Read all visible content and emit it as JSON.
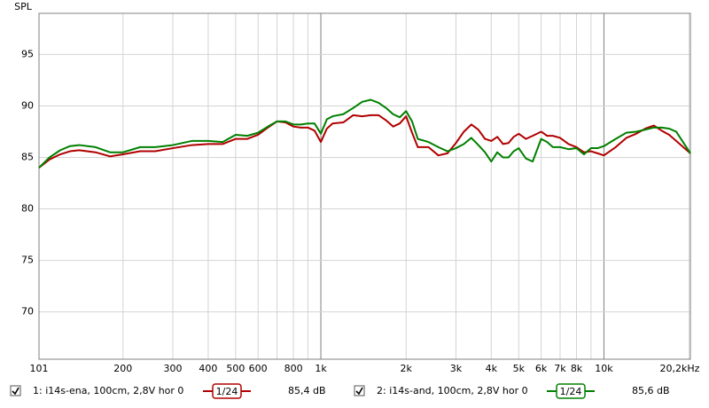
{
  "chart_data": {
    "type": "line",
    "y_label": "SPL",
    "xscale": "log",
    "xlim": [
      101,
      20200
    ],
    "ylim": [
      65.4,
      99
    ],
    "xticks": [
      101,
      200,
      300,
      400,
      500,
      600,
      800,
      {
        "value": 1000,
        "label": "1k"
      },
      {
        "value": 2000,
        "label": "2k"
      },
      {
        "value": 3000,
        "label": "3k"
      },
      {
        "value": 4000,
        "label": "4k"
      },
      {
        "value": 5000,
        "label": "5k"
      },
      {
        "value": 6000,
        "label": "6k"
      },
      {
        "value": 7000,
        "label": "7k"
      },
      {
        "value": 8000,
        "label": "8k"
      },
      {
        "value": 10000,
        "label": "10k"
      },
      {
        "value": 20200,
        "label": "20,2kHz"
      }
    ],
    "xgrid": [
      200,
      300,
      400,
      500,
      600,
      700,
      800,
      900,
      1000,
      2000,
      3000,
      4000,
      5000,
      6000,
      7000,
      8000,
      9000,
      10000,
      20000
    ],
    "yticks": [
      70,
      75,
      80,
      85,
      90,
      95
    ],
    "grid": true,
    "x": [
      101,
      110,
      120,
      130,
      140,
      160,
      180,
      200,
      230,
      260,
      300,
      350,
      400,
      450,
      500,
      550,
      600,
      650,
      700,
      750,
      800,
      850,
      900,
      950,
      1000,
      1050,
      1100,
      1200,
      1300,
      1400,
      1500,
      1600,
      1700,
      1800,
      1900,
      2000,
      2100,
      2200,
      2400,
      2600,
      2800,
      3000,
      3200,
      3400,
      3600,
      3800,
      4000,
      4200,
      4400,
      4600,
      4800,
      5000,
      5300,
      5600,
      6000,
      6300,
      6600,
      7000,
      7500,
      8000,
      8500,
      9000,
      9500,
      10000,
      11000,
      12000,
      13000,
      14000,
      15000,
      16000,
      17000,
      18000,
      20200
    ],
    "series": [
      {
        "name": "1: i14s-ena, 100cm, 2,8V hor 0",
        "color": "#b00000",
        "smoothing": "1/24",
        "level_label": "85,4 dB",
        "values": [
          84.0,
          84.8,
          85.3,
          85.6,
          85.7,
          85.5,
          85.1,
          85.3,
          85.6,
          85.6,
          85.9,
          86.2,
          86.3,
          86.3,
          86.8,
          86.8,
          87.2,
          87.9,
          88.5,
          88.4,
          88.0,
          87.9,
          87.9,
          87.6,
          86.5,
          87.8,
          88.3,
          88.4,
          89.1,
          89.0,
          89.1,
          89.1,
          88.6,
          88.0,
          88.3,
          89.0,
          87.4,
          86.0,
          86.0,
          85.2,
          85.4,
          86.4,
          87.5,
          88.2,
          87.7,
          86.8,
          86.6,
          87.0,
          86.3,
          86.4,
          87.0,
          87.3,
          86.8,
          87.1,
          87.5,
          87.1,
          87.1,
          86.9,
          86.3,
          86.0,
          85.5,
          85.6,
          85.4,
          85.2,
          86.0,
          86.9,
          87.3,
          87.8,
          88.1,
          87.6,
          87.2,
          86.6,
          85.4
        ]
      },
      {
        "name": "2: i14s-and, 100cm, 2,8V hor 0",
        "color": "#008000",
        "smoothing": "1/24",
        "level_label": "85,6 dB",
        "values": [
          84.0,
          85.0,
          85.7,
          86.1,
          86.2,
          86.0,
          85.5,
          85.5,
          86.0,
          86.0,
          86.2,
          86.6,
          86.6,
          86.5,
          87.2,
          87.1,
          87.4,
          88.0,
          88.5,
          88.5,
          88.2,
          88.2,
          88.3,
          88.3,
          87.3,
          88.7,
          89.0,
          89.2,
          89.8,
          90.4,
          90.6,
          90.3,
          89.8,
          89.2,
          88.9,
          89.5,
          88.5,
          86.8,
          86.5,
          86.0,
          85.6,
          85.9,
          86.3,
          86.9,
          86.2,
          85.5,
          84.6,
          85.5,
          85.0,
          85.0,
          85.6,
          85.9,
          84.9,
          84.6,
          86.8,
          86.5,
          86.0,
          86.0,
          85.8,
          85.9,
          85.3,
          85.9,
          85.9,
          86.1,
          86.8,
          87.4,
          87.5,
          87.7,
          87.9,
          87.9,
          87.8,
          87.5,
          85.4
        ]
      }
    ]
  }
}
